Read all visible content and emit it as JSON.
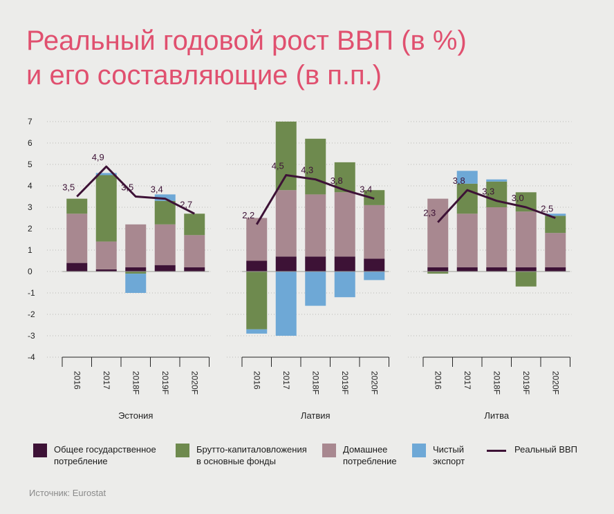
{
  "title_line1": "Реальный годовой рост ВВП (в %)",
  "title_line2": "и его составляющие (в п.п.)",
  "source": "Источник: Eurostat",
  "colors": {
    "gov": "#3d1236",
    "gfcf": "#6e8a4e",
    "household": "#a88890",
    "netexport": "#6ea8d6",
    "gdp_line": "#3d1236",
    "background": "#ececea",
    "title": "#e0506f"
  },
  "legend": [
    {
      "key": "gov",
      "label": "Общее государственное\nпотребление"
    },
    {
      "key": "gfcf",
      "label": "Брутто-капиталовложения\nв основные фонды"
    },
    {
      "key": "household",
      "label": "Домашнее\nпотребление"
    },
    {
      "key": "netexport",
      "label": "Чистый\nэкспорт"
    },
    {
      "key": "gdp_line",
      "label": "Реальный ВВП"
    }
  ],
  "chart_data": {
    "type": "bar",
    "stacked": true,
    "ylim": [
      -4,
      7
    ],
    "yticks": [
      "7",
      "6",
      "5",
      "4",
      "3",
      "2",
      "1",
      "0",
      "-1",
      "-2",
      "-3",
      "-4"
    ],
    "categories": [
      "2016",
      "2017",
      "2018F",
      "2019F",
      "2020F"
    ],
    "panels": [
      {
        "country": "Эстония",
        "gov": [
          0.4,
          0.1,
          0.2,
          0.3,
          0.2
        ],
        "household": [
          2.3,
          1.3,
          2.0,
          1.9,
          1.5
        ],
        "gfcf": [
          0.7,
          3.1,
          -0.1,
          1.1,
          1.0
        ],
        "netexport": [
          0.0,
          0.1,
          -0.9,
          0.3,
          0.0
        ],
        "gdp": [
          3.5,
          4.9,
          3.5,
          3.4,
          2.7
        ],
        "gdp_labels": [
          "3,5",
          "4,9",
          "3,5",
          "3,4",
          "2,7"
        ]
      },
      {
        "country": "Латвия",
        "gov": [
          0.5,
          0.7,
          0.7,
          0.7,
          0.6
        ],
        "household": [
          2.0,
          3.1,
          2.9,
          3.0,
          2.5
        ],
        "gfcf": [
          -2.7,
          3.2,
          2.6,
          1.4,
          0.7
        ],
        "netexport": [
          -0.2,
          -3.0,
          -1.6,
          -1.2,
          -0.4
        ],
        "gdp": [
          2.2,
          4.5,
          4.3,
          3.8,
          3.4
        ],
        "gdp_labels": [
          "2,2",
          "4,5",
          "4,3",
          "3,8",
          "3,4"
        ]
      },
      {
        "country": "Литва",
        "gov": [
          0.2,
          0.2,
          0.2,
          0.2,
          0.2
        ],
        "household": [
          3.2,
          2.5,
          2.8,
          2.6,
          1.6
        ],
        "gfcf": [
          -0.1,
          1.4,
          1.2,
          0.9,
          0.8
        ],
        "netexport": [
          0.0,
          0.6,
          0.1,
          0.0,
          0.1
        ],
        "gfcf_neg": [
          0.0,
          0.0,
          0.0,
          -0.7,
          0.0
        ],
        "gdp": [
          2.3,
          3.8,
          3.3,
          3.0,
          2.5
        ],
        "gdp_labels": [
          "2,3",
          "3,8",
          "3,3",
          "3,0",
          "2,5"
        ]
      }
    ]
  }
}
